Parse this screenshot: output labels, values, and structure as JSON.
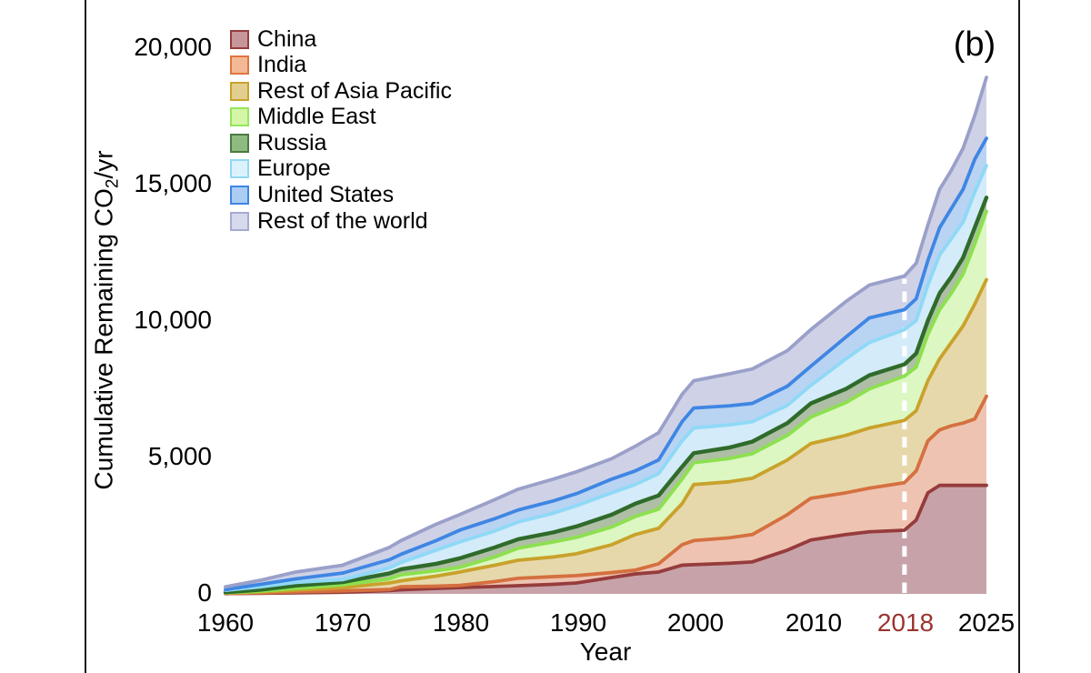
{
  "panel_label": "(b)",
  "axes": {
    "y": {
      "label_prefix": "Cumulative Remaining CO",
      "label_sub": "2",
      "label_suffix": "/yr",
      "ticks": [
        {
          "label": "0",
          "value": 0
        },
        {
          "label": "5,000",
          "value": 5000
        },
        {
          "label": "10,000",
          "value": 10000
        },
        {
          "label": "15,000",
          "value": 15000
        },
        {
          "label": "20,000",
          "value": 20000
        }
      ]
    },
    "x": {
      "label": "Year",
      "ticks": [
        {
          "label": "1960",
          "value": 1960,
          "color": "#000000"
        },
        {
          "label": "1970",
          "value": 1970,
          "color": "#000000"
        },
        {
          "label": "1980",
          "value": 1980,
          "color": "#000000"
        },
        {
          "label": "1990",
          "value": 1990,
          "color": "#000000"
        },
        {
          "label": "2000",
          "value": 2000,
          "color": "#000000"
        },
        {
          "label": "2010",
          "value": 2010,
          "color": "#000000"
        },
        {
          "label": "2018",
          "value": 2018,
          "color": "#9a3530"
        },
        {
          "label": "2025",
          "value": 2025,
          "color": "#000000"
        }
      ]
    }
  },
  "legend": [
    {
      "label": "China",
      "fill": "#c6969a",
      "border": "#963c3c"
    },
    {
      "label": "India",
      "fill": "#f3b996",
      "border": "#df7540"
    },
    {
      "label": "Rest of Asia Pacific",
      "fill": "#e2cf90",
      "border": "#c9a22c"
    },
    {
      "label": "Middle East",
      "fill": "#d5f6a6",
      "border": "#94e65a"
    },
    {
      "label": "Russia",
      "fill": "#8fba80",
      "border": "#4c7a41"
    },
    {
      "label": "Europe",
      "fill": "#dbf2fc",
      "border": "#92d8f4"
    },
    {
      "label": "United States",
      "fill": "#abcdf4",
      "border": "#3f86e3"
    },
    {
      "label": "Rest of the world",
      "fill": "#d7d9ed",
      "border": "#a6aad1"
    }
  ],
  "chart_data": {
    "type": "area",
    "stacked": true,
    "title": "",
    "xlabel": "Year",
    "ylabel": "Cumulative Remaining CO₂/yr",
    "xlim": [
      1960,
      2025
    ],
    "ylim": [
      0,
      20000
    ],
    "grid": false,
    "legend_position": "top-left",
    "x": [
      1960,
      1963,
      1966,
      1970,
      1974,
      1975,
      1978,
      1980,
      1983,
      1985,
      1988,
      1990,
      1993,
      1995,
      1997,
      1999,
      2000,
      2003,
      2005,
      2008,
      2010,
      2013,
      2015,
      2018,
      2019,
      2020,
      2021,
      2022,
      2023,
      2024,
      2025
    ],
    "series": [
      {
        "name": "China",
        "line_color": "#963c3c",
        "fill_color": "#c7a3a9",
        "values": [
          10,
          20,
          40,
          60,
          120,
          150,
          200,
          230,
          270,
          300,
          350,
          400,
          600,
          730,
          800,
          1050,
          1070,
          1120,
          1170,
          1600,
          1970,
          2170,
          2270,
          2330,
          2700,
          3700,
          3970,
          3970,
          3970,
          3970,
          3970
        ]
      },
      {
        "name": "India",
        "line_color": "#d5703f",
        "fill_color": "#eec3b1",
        "values": [
          10,
          20,
          30,
          50,
          40,
          110,
          80,
          80,
          180,
          270,
          280,
          270,
          180,
          140,
          300,
          750,
          880,
          930,
          1000,
          1300,
          1530,
          1530,
          1600,
          1740,
          1800,
          1900,
          2030,
          2180,
          2280,
          2430,
          3260
        ]
      },
      {
        "name": "Rest of Asia Pacific",
        "line_color": "#c9a22c",
        "fill_color": "#e7d8ab",
        "values": [
          10,
          30,
          70,
          120,
          240,
          220,
          370,
          490,
          600,
          660,
          720,
          800,
          1020,
          1300,
          1300,
          1500,
          2050,
          2050,
          2060,
          2000,
          2000,
          2100,
          2200,
          2280,
          2200,
          2200,
          2600,
          3050,
          3550,
          4200,
          4270
        ]
      },
      {
        "name": "Middle East",
        "line_color": "#8de04f",
        "fill_color": "#dcf7c2",
        "values": [
          10,
          30,
          60,
          100,
          150,
          220,
          200,
          170,
          300,
          440,
          550,
          600,
          650,
          660,
          700,
          900,
          800,
          850,
          900,
          900,
          970,
          1200,
          1430,
          1620,
          1600,
          1700,
          1800,
          1800,
          1900,
          2200,
          2500
        ]
      },
      {
        "name": "Russia",
        "line_color": "#2f6b2b",
        "fill_color": "#aebfa6",
        "values": [
          20,
          50,
          100,
          100,
          200,
          200,
          250,
          330,
          350,
          330,
          350,
          400,
          450,
          470,
          500,
          450,
          350,
          400,
          440,
          450,
          500,
          500,
          500,
          430,
          500,
          500,
          600,
          600,
          600,
          600,
          500
        ]
      },
      {
        "name": "Europe",
        "line_color": "#8fd9f6",
        "fill_color": "#d4ebf9",
        "values": [
          70,
          110,
          120,
          90,
          200,
          250,
          500,
          600,
          600,
          630,
          700,
          760,
          800,
          700,
          800,
          950,
          920,
          830,
          730,
          650,
          660,
          1100,
          1200,
          1270,
          1200,
          1300,
          1400,
          1400,
          1300,
          1300,
          1170
        ]
      },
      {
        "name": "United States",
        "line_color": "#3f86e3",
        "fill_color": "#b9d3f3",
        "values": [
          30,
          90,
          130,
          240,
          300,
          300,
          350,
          430,
          450,
          440,
          450,
          440,
          500,
          500,
          500,
          700,
          730,
          700,
          670,
          700,
          700,
          800,
          900,
          730,
          800,
          900,
          1000,
          1100,
          1200,
          1200,
          1000
        ]
      },
      {
        "name": "Rest of the world",
        "line_color": "#9aa0c9",
        "fill_color": "#cfd2e6",
        "values": [
          100,
          150,
          250,
          290,
          450,
          500,
          600,
          570,
          700,
          760,
          800,
          800,
          750,
          900,
          1000,
          1000,
          1000,
          1170,
          1260,
          1300,
          1340,
          1300,
          1200,
          1230,
          1300,
          1300,
          1400,
          1400,
          1500,
          1600,
          2230
        ]
      }
    ],
    "annotations": [
      {
        "type": "vline",
        "x": 2018,
        "style": "dashed",
        "color": "#ffffff",
        "tick_label": "2018",
        "tick_label_color": "#9a3530"
      }
    ]
  }
}
